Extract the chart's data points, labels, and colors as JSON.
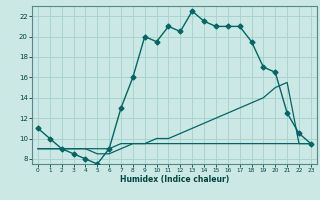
{
  "xlabel": "Humidex (Indice chaleur)",
  "background_color": "#cce8e4",
  "grid_color": "#a8d4d0",
  "line_color": "#006666",
  "xlim": [
    -0.5,
    23.5
  ],
  "ylim": [
    7.5,
    23.0
  ],
  "yticks": [
    8,
    10,
    12,
    14,
    16,
    18,
    20,
    22
  ],
  "xticks": [
    0,
    1,
    2,
    3,
    4,
    5,
    6,
    7,
    8,
    9,
    10,
    11,
    12,
    13,
    14,
    15,
    16,
    17,
    18,
    19,
    20,
    21,
    22,
    23
  ],
  "line1_x": [
    0,
    1,
    2,
    3,
    4,
    5,
    6,
    7,
    8,
    9,
    10,
    11,
    12,
    13,
    14,
    15,
    16,
    17,
    18,
    19,
    20,
    21,
    22,
    23
  ],
  "line1_y": [
    11,
    10,
    9,
    8.5,
    8,
    7.5,
    9,
    13,
    16,
    20,
    19.5,
    21,
    20.5,
    22.5,
    21.5,
    21,
    21,
    21,
    19.5,
    17,
    16.5,
    12.5,
    10.5,
    9.5
  ],
  "line2_x": [
    0,
    1,
    2,
    3,
    4,
    5,
    6,
    7,
    8,
    9,
    10,
    11,
    12,
    13,
    14,
    15,
    16,
    17,
    18,
    19,
    20,
    21,
    22,
    23
  ],
  "line2_y": [
    9,
    9,
    9,
    9,
    9,
    8.5,
    8.5,
    9,
    9.5,
    9.5,
    10,
    10,
    10.5,
    11,
    11.5,
    12,
    12.5,
    13,
    13.5,
    14,
    15,
    15.5,
    9.5,
    9.5
  ],
  "line3_x": [
    0,
    1,
    2,
    3,
    4,
    5,
    6,
    7,
    8,
    9,
    10,
    11,
    12,
    13,
    14,
    15,
    16,
    17,
    18,
    19,
    20,
    21,
    22,
    23
  ],
  "line3_y": [
    9,
    9,
    9,
    9,
    9,
    9,
    9,
    9.5,
    9.5,
    9.5,
    9.5,
    9.5,
    9.5,
    9.5,
    9.5,
    9.5,
    9.5,
    9.5,
    9.5,
    9.5,
    9.5,
    9.5,
    9.5,
    9.5
  ]
}
